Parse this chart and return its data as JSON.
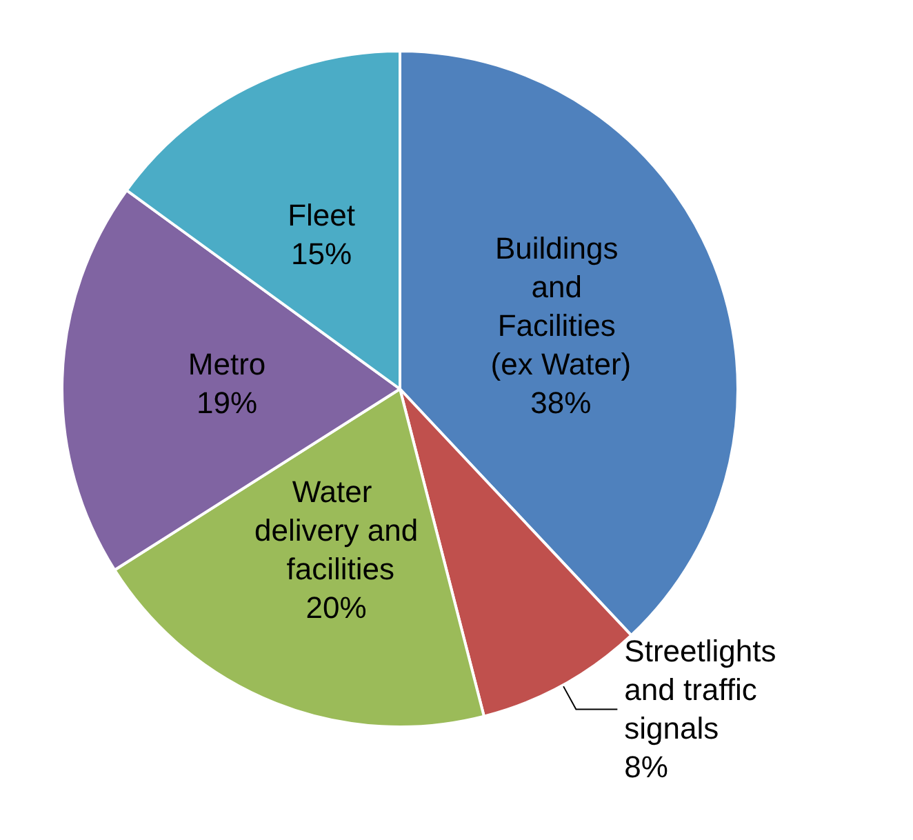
{
  "chart_data": {
    "type": "pie",
    "categories": [
      "Buildings and Facilities (ex Water)",
      "Streetlights and traffic signals",
      "Water delivery and facilities",
      "Metro",
      "Fleet"
    ],
    "values": [
      38,
      8,
      20,
      19,
      15
    ],
    "value_labels": [
      "38%",
      "8%",
      "20%",
      "19%",
      "15%"
    ],
    "colors": [
      "#4f81bd",
      "#c0504d",
      "#9bbb59",
      "#8064a2",
      "#4bacc6"
    ],
    "legend": false
  }
}
